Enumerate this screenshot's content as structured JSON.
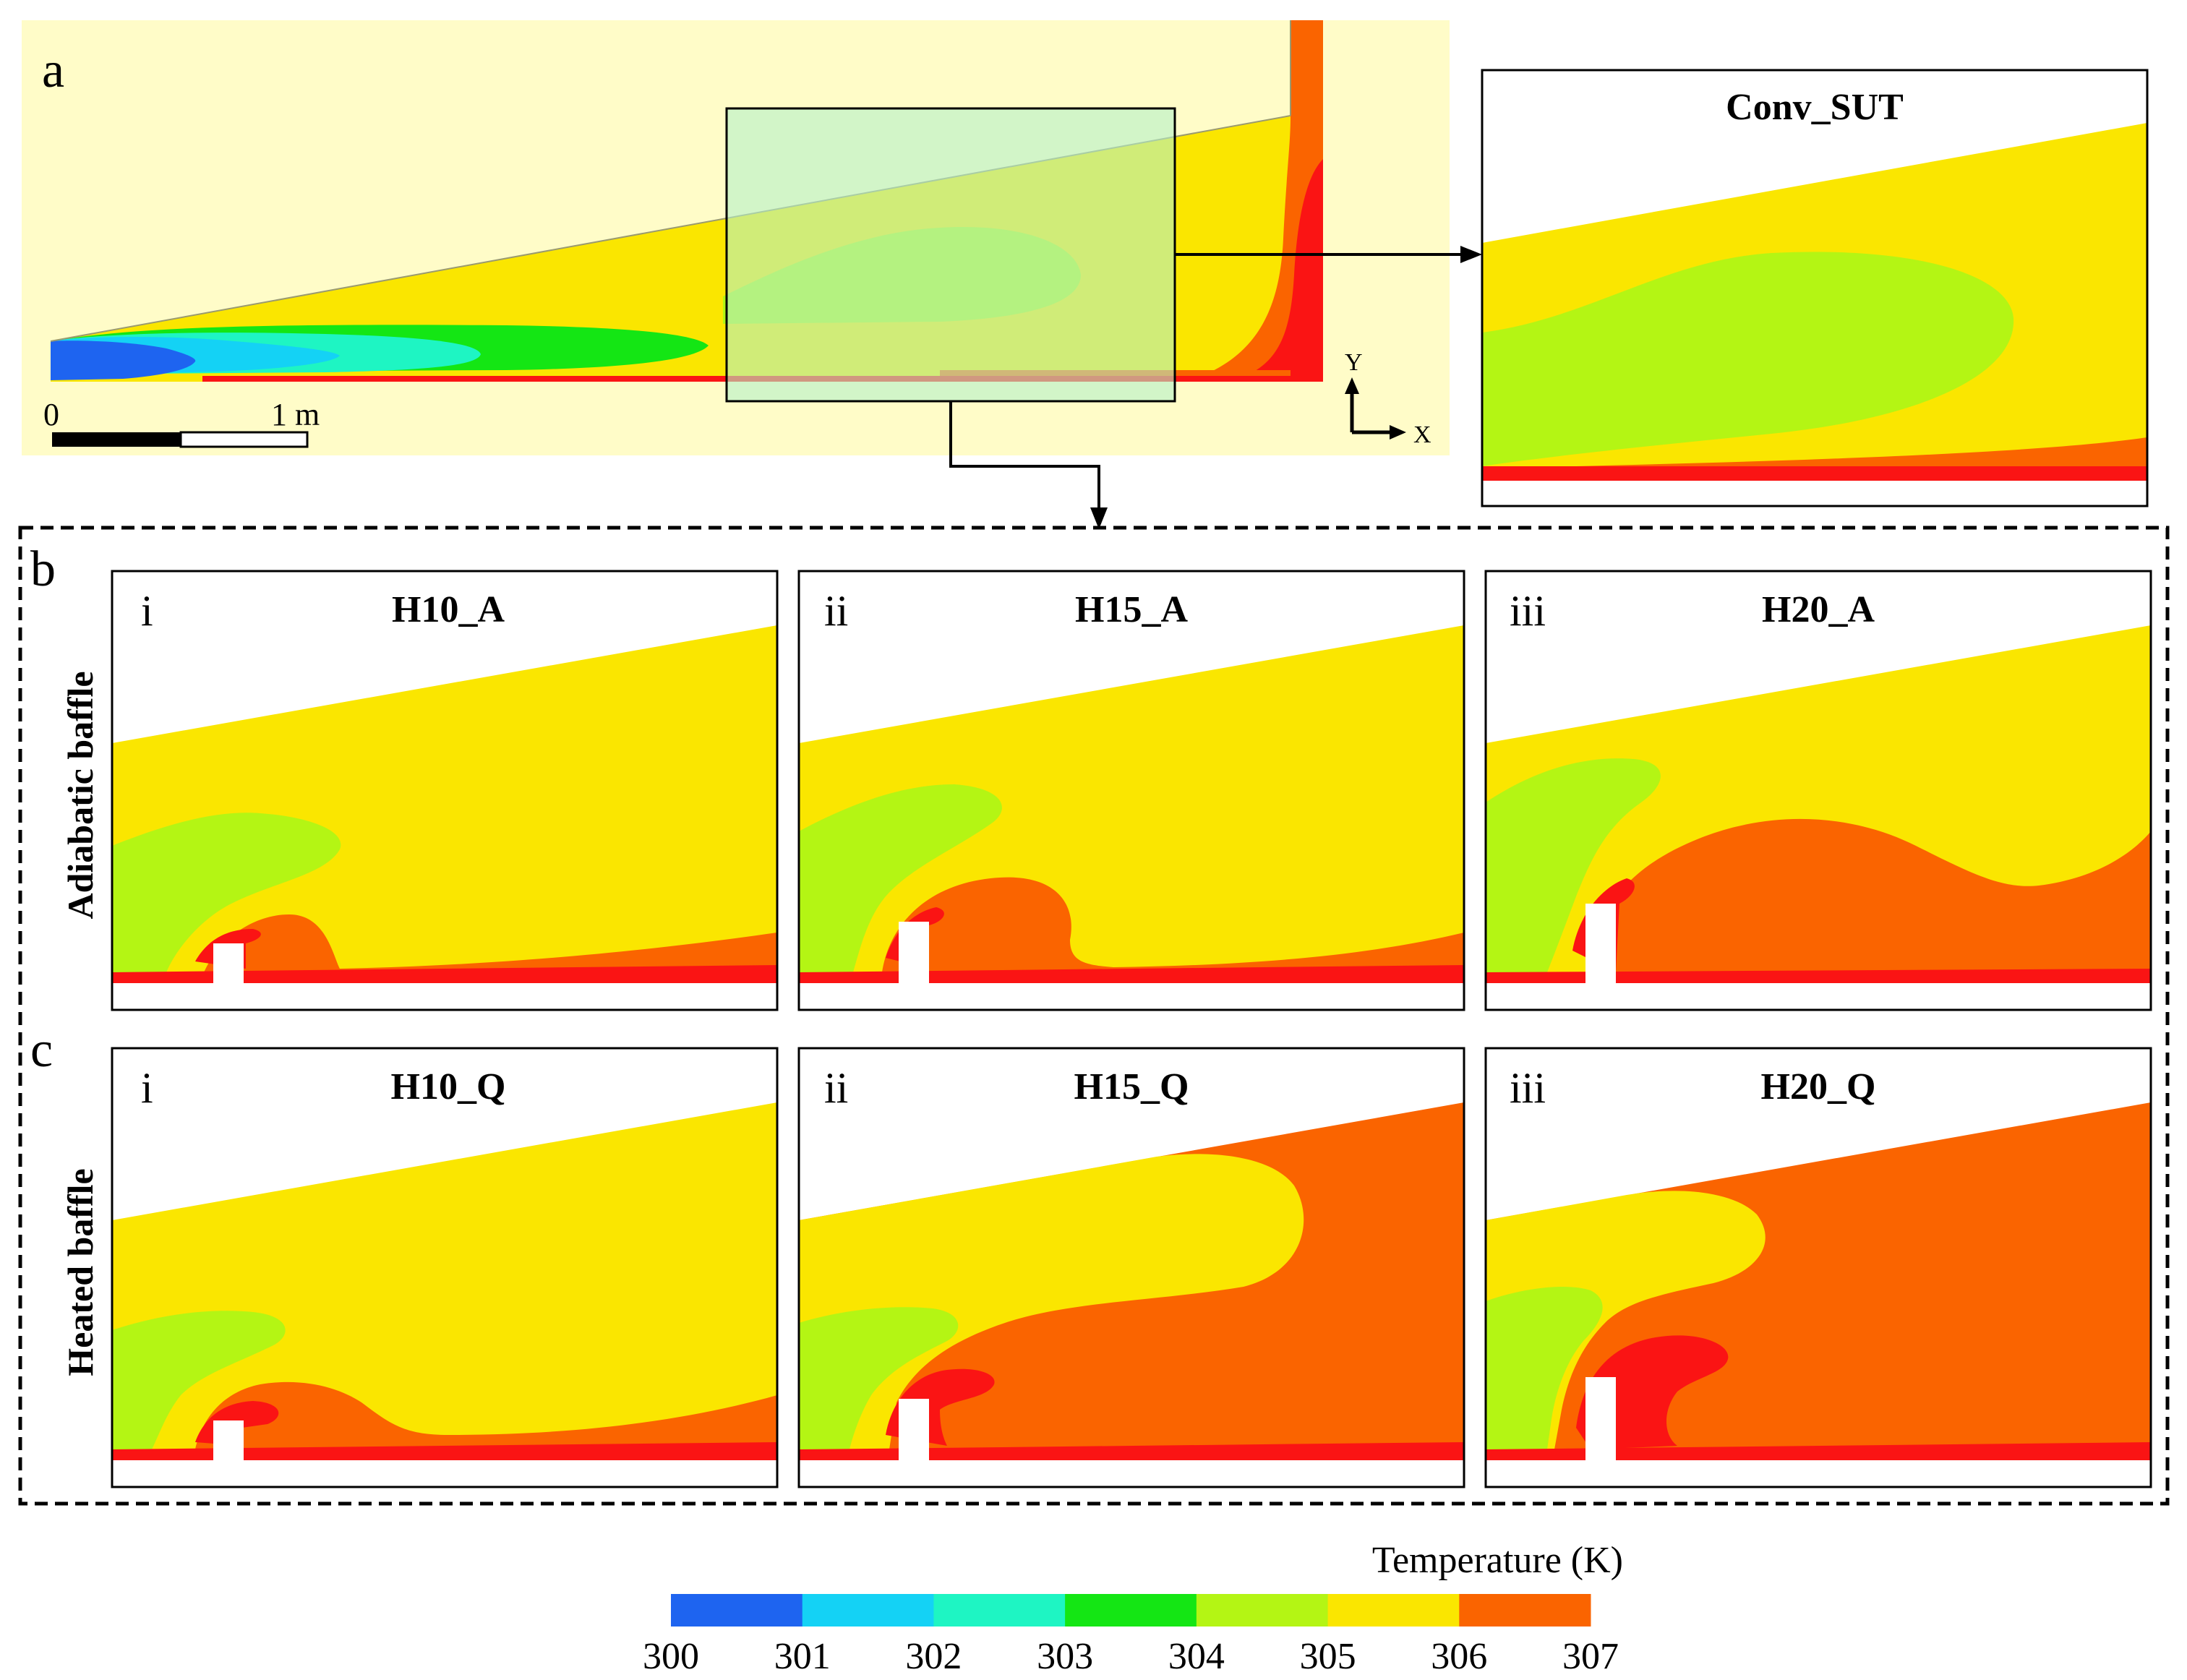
{
  "colors": {
    "T300": "#1e64f0",
    "T301": "#14d2f5",
    "T302": "#1ef5c3",
    "T303": "#14e614",
    "T304": "#b4f514",
    "T305": "#fae600",
    "T306": "#fa6400",
    "T307": "#fa1414",
    "panel_a_background": "#fffcc8",
    "zoom_highlight": "#b4f0c8"
  },
  "panel_a": {
    "label": "a",
    "scale_bar": {
      "start_label": "0",
      "end_label": "1 m"
    },
    "axes": {
      "y_label": "Y",
      "x_label": "X"
    },
    "zoom_title": "Conv_SUT"
  },
  "panel_b": {
    "label": "b",
    "row_label": "Adiabatic baffle",
    "cases": [
      {
        "numeral": "i",
        "title": "H10_A"
      },
      {
        "numeral": "ii",
        "title": "H15_A"
      },
      {
        "numeral": "iii",
        "title": "H20_A"
      }
    ]
  },
  "panel_c": {
    "label": "c",
    "row_label": "Heated baffle",
    "cases": [
      {
        "numeral": "i",
        "title": "H10_Q"
      },
      {
        "numeral": "ii",
        "title": "H15_Q"
      },
      {
        "numeral": "iii",
        "title": "H20_Q"
      }
    ]
  },
  "colorbar": {
    "title": "Temperature (K)",
    "ticks": [
      "300",
      "301",
      "302",
      "303",
      "304",
      "305",
      "306",
      "307"
    ],
    "colors": [
      "#1e64f0",
      "#14d2f5",
      "#1ef5c3",
      "#14e614",
      "#b4f514",
      "#fae600",
      "#fa6400"
    ]
  }
}
